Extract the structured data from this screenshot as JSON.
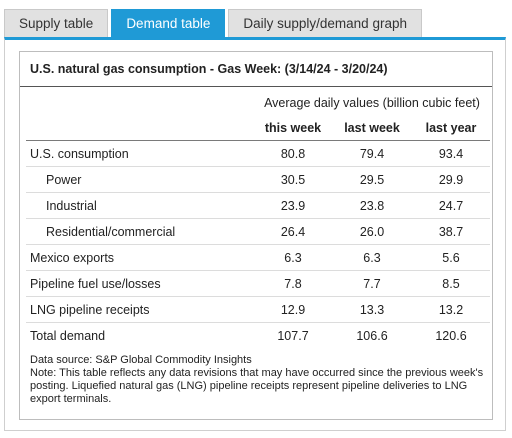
{
  "tabs": [
    {
      "label": "Supply table",
      "active": false
    },
    {
      "label": "Demand table",
      "active": true
    },
    {
      "label": "Daily supply/demand graph",
      "active": false
    }
  ],
  "table": {
    "title": "U.S. natural gas consumption - Gas Week: (3/14/24 - 3/20/24)",
    "group_header": "Average daily values (billion cubic feet)",
    "columns": [
      "this week",
      "last week",
      "last year"
    ],
    "rows": [
      {
        "label": "U.S. consumption",
        "indent": false,
        "values": [
          "80.8",
          "79.4",
          "93.4"
        ]
      },
      {
        "label": "Power",
        "indent": true,
        "values": [
          "30.5",
          "29.5",
          "29.9"
        ]
      },
      {
        "label": "Industrial",
        "indent": true,
        "values": [
          "23.9",
          "23.8",
          "24.7"
        ]
      },
      {
        "label": "Residential/commercial",
        "indent": true,
        "values": [
          "26.4",
          "26.0",
          "38.7"
        ]
      },
      {
        "label": "Mexico exports",
        "indent": false,
        "values": [
          "6.3",
          "6.3",
          "5.6"
        ]
      },
      {
        "label": "Pipeline fuel use/losses",
        "indent": false,
        "values": [
          "7.8",
          "7.7",
          "8.5"
        ]
      },
      {
        "label": "LNG pipeline receipts",
        "indent": false,
        "values": [
          "12.9",
          "13.3",
          "13.2"
        ]
      },
      {
        "label": "Total demand",
        "indent": false,
        "values": [
          "107.7",
          "106.6",
          "120.6"
        ]
      }
    ]
  },
  "notes": {
    "source": "Data source: S&P Global Commodity Insights",
    "note": "Note: This table reflects any data revisions that may have occurred since the previous week's posting. Liquefied natural gas (LNG) pipeline receipts represent pipeline deliveries to LNG export terminals."
  },
  "colors": {
    "accent": "#1f9ad6",
    "tab_inactive": "#e1e1e1"
  }
}
